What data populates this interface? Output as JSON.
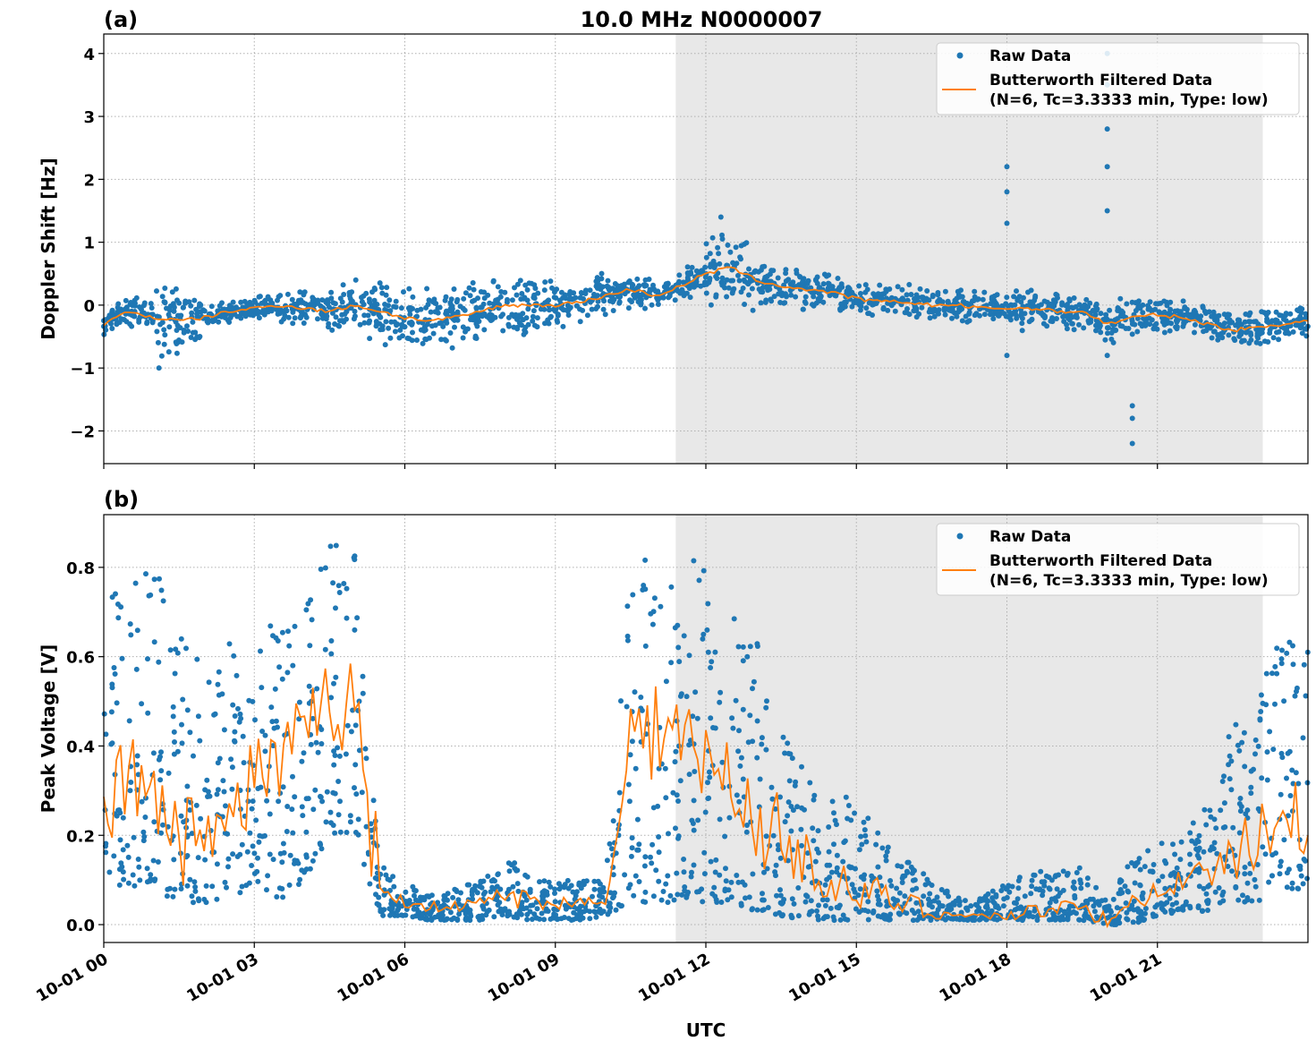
{
  "title": "10.0 MHz N0000007",
  "xlabel": "UTC",
  "x_tick_labels": [
    "10-01 00",
    "10-01 03",
    "10-01 06",
    "10-01 09",
    "10-01 12",
    "10-01 15",
    "10-01 18",
    "10-01 21"
  ],
  "legend": {
    "raw": "Raw Data",
    "filt1": "Butterworth Filtered Data",
    "filt2": "(N=6, Tc=3.3333 min, Type: low)"
  },
  "colors": {
    "raw": "#1f77b4",
    "filtered": "#ff7f0e",
    "shade": "#e8e8e8"
  },
  "chart_data": [
    {
      "type": "scatter",
      "panel_label": "(a)",
      "ylabel": "Doppler Shift [Hz]",
      "xlim_hours": [
        0,
        24
      ],
      "ylim": [
        -2.52,
        4.31
      ],
      "y_ticks": [
        -2,
        -1,
        0,
        1,
        2,
        3,
        4
      ],
      "y_tick_labels": [
        "−2",
        "−1",
        "0",
        "1",
        "2",
        "3",
        "4"
      ],
      "shaded_hours": [
        11.4,
        23.1
      ],
      "grid": true,
      "legend_placement": "top-right",
      "x_hours": [
        0,
        0.5,
        1,
        1.5,
        2,
        2.5,
        3,
        3.5,
        4,
        4.5,
        5,
        5.5,
        6,
        6.5,
        7,
        7.5,
        8,
        8.5,
        9,
        9.5,
        10,
        10.5,
        11,
        11.5,
        12,
        12.5,
        13,
        13.5,
        14,
        14.5,
        15,
        15.5,
        16,
        16.5,
        17,
        17.5,
        18,
        18.5,
        19,
        19.5,
        20,
        20.5,
        21,
        21.5,
        22,
        22.5,
        23,
        23.5,
        24
      ],
      "filtered": [
        -0.3,
        -0.1,
        -0.2,
        -0.25,
        -0.2,
        -0.1,
        -0.05,
        0,
        -0.05,
        -0.1,
        0,
        -0.1,
        -0.2,
        -0.25,
        -0.2,
        -0.1,
        0,
        0,
        0,
        0.05,
        0.15,
        0.25,
        0.15,
        0.3,
        0.5,
        0.6,
        0.4,
        0.3,
        0.25,
        0.2,
        0.1,
        0.05,
        0.05,
        0,
        0,
        -0.05,
        -0.05,
        -0.05,
        -0.1,
        -0.1,
        -0.3,
        -0.2,
        -0.15,
        -0.2,
        -0.3,
        -0.4,
        -0.35,
        -0.3,
        -0.25
      ],
      "raw_spread": [
        0.25,
        0.25,
        0.6,
        0.4,
        0.2,
        0.15,
        0.2,
        0.3,
        0.3,
        0.4,
        0.55,
        0.55,
        0.55,
        0.6,
        0.5,
        0.5,
        0.5,
        0.45,
        0.45,
        0.4,
        0.3,
        0.3,
        0.2,
        0.3,
        0.6,
        0.7,
        0.4,
        0.35,
        0.3,
        0.3,
        0.3,
        0.3,
        0.3,
        0.3,
        0.3,
        0.3,
        0.4,
        0.3,
        0.3,
        0.3,
        0.4,
        0.3,
        0.3,
        0.3,
        0.3,
        0.3,
        0.3,
        0.3,
        0.3
      ],
      "outliers": [
        {
          "x": 18.0,
          "y": 2.2
        },
        {
          "x": 18.0,
          "y": 1.8
        },
        {
          "x": 18.0,
          "y": 1.3
        },
        {
          "x": 18.0,
          "y": -0.8
        },
        {
          "x": 20.0,
          "y": 4.0
        },
        {
          "x": 20.0,
          "y": 3.5
        },
        {
          "x": 20.0,
          "y": 2.8
        },
        {
          "x": 20.0,
          "y": 2.2
        },
        {
          "x": 20.0,
          "y": 1.5
        },
        {
          "x": 20.0,
          "y": -0.8
        },
        {
          "x": 20.5,
          "y": -1.6
        },
        {
          "x": 20.5,
          "y": -1.8
        },
        {
          "x": 20.5,
          "y": -2.2
        },
        {
          "x": 12.3,
          "y": 1.4
        },
        {
          "x": 1.1,
          "y": -1.0
        }
      ]
    },
    {
      "type": "scatter",
      "panel_label": "(b)",
      "ylabel": "Peak Voltage [V]",
      "xlim_hours": [
        0,
        24
      ],
      "ylim": [
        -0.04,
        0.918
      ],
      "y_ticks": [
        0,
        0.2,
        0.4,
        0.6,
        0.8
      ],
      "y_tick_labels": [
        "0.0",
        "0.2",
        "0.4",
        "0.6",
        "0.8"
      ],
      "shaded_hours": [
        11.4,
        23.1
      ],
      "grid": true,
      "legend_placement": "top-right",
      "x_hours": [
        0,
        0.5,
        1,
        1.5,
        2,
        2.5,
        3,
        3.5,
        4,
        4.5,
        5,
        5.5,
        6,
        6.5,
        7,
        7.5,
        8,
        8.5,
        9,
        9.5,
        10,
        10.5,
        11,
        11.5,
        12,
        12.5,
        13,
        13.5,
        14,
        14.5,
        15,
        15.5,
        16,
        16.5,
        17,
        17.5,
        18,
        18.5,
        19,
        19.5,
        20,
        20.5,
        21,
        21.5,
        22,
        22.5,
        23,
        23.5,
        24
      ],
      "filtered": [
        0.3,
        0.3,
        0.35,
        0.2,
        0.25,
        0.2,
        0.35,
        0.35,
        0.4,
        0.5,
        0.5,
        0.08,
        0.05,
        0.04,
        0.04,
        0.05,
        0.07,
        0.05,
        0.05,
        0.05,
        0.05,
        0.4,
        0.45,
        0.4,
        0.35,
        0.3,
        0.25,
        0.18,
        0.15,
        0.1,
        0.07,
        0.06,
        0.05,
        0.03,
        0.02,
        0.02,
        0.02,
        0.03,
        0.04,
        0.05,
        0.0,
        0.05,
        0.08,
        0.1,
        0.12,
        0.15,
        0.2,
        0.25,
        0.2
      ],
      "raw_max": [
        0.75,
        0.8,
        0.8,
        0.75,
        0.55,
        0.72,
        0.6,
        0.74,
        0.7,
        0.85,
        0.87,
        0.15,
        0.09,
        0.08,
        0.08,
        0.1,
        0.17,
        0.1,
        0.1,
        0.1,
        0.1,
        0.8,
        0.85,
        0.82,
        0.84,
        0.7,
        0.67,
        0.5,
        0.35,
        0.3,
        0.28,
        0.2,
        0.15,
        0.1,
        0.06,
        0.06,
        0.1,
        0.12,
        0.12,
        0.13,
        0.05,
        0.15,
        0.18,
        0.2,
        0.28,
        0.45,
        0.5,
        0.7,
        0.65
      ],
      "raw_min": [
        0.1,
        0.08,
        0.1,
        0.03,
        0.05,
        0.05,
        0.1,
        0.05,
        0.1,
        0.2,
        0.2,
        0.02,
        0.02,
        0.01,
        0.01,
        0.01,
        0.02,
        0.01,
        0.01,
        0.01,
        0.02,
        0.05,
        0.05,
        0.05,
        0.05,
        0.05,
        0.03,
        0.02,
        0.01,
        0.01,
        0.01,
        0.01,
        0.01,
        0.01,
        0.01,
        0.01,
        0.01,
        0.01,
        0.01,
        0.01,
        0,
        0,
        0.02,
        0.03,
        0.03,
        0.05,
        0.05,
        0.08,
        0.08
      ]
    }
  ]
}
